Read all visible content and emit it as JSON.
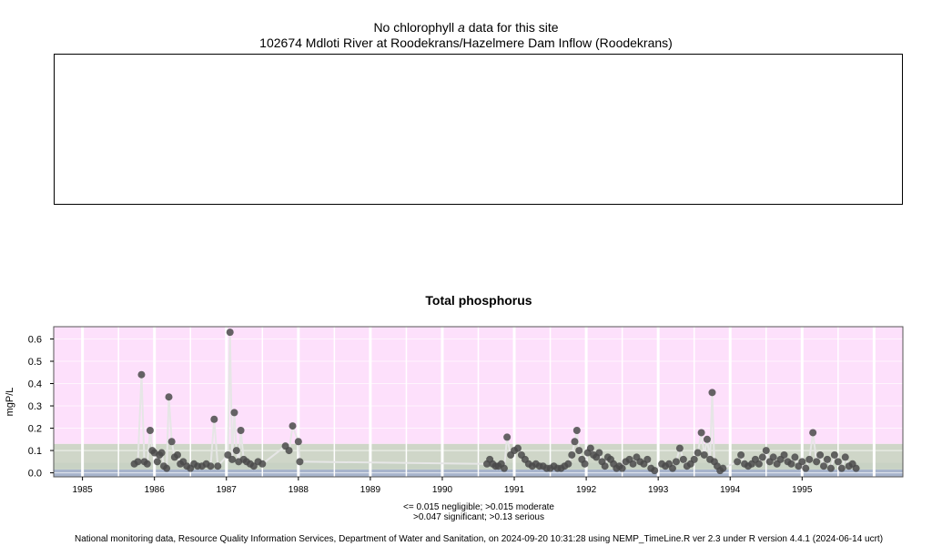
{
  "header": {
    "no_data_prefix": "No chlorophyll",
    "no_data_italic": "a",
    "no_data_suffix": "data for this site",
    "site": "102674 Mdloti River at Roodekrans/Hazelmere Dam Inflow (Roodekrans)"
  },
  "chart_data": {
    "type": "scatter",
    "title": "Total phosphorus",
    "ylabel": "mgP/L",
    "xlabel": "",
    "xlim": [
      1984.6,
      1996.4
    ],
    "ylim": [
      -0.018,
      0.655
    ],
    "x_ticks": [
      "1985",
      "1986",
      "1987",
      "1988",
      "1989",
      "1990",
      "1991",
      "1992",
      "1993",
      "1994",
      "1995"
    ],
    "y_ticks": [
      "0.0",
      "0.1",
      "0.2",
      "0.3",
      "0.4",
      "0.5",
      "0.6"
    ],
    "bands": [
      {
        "name": "negligible",
        "from": -0.018,
        "to": 0.015,
        "color": "#a7b4cc"
      },
      {
        "name": "moderate",
        "from": 0.015,
        "to": 0.047,
        "color": "#c8d2c4"
      },
      {
        "name": "significant",
        "from": 0.047,
        "to": 0.13,
        "color": "#cfd6c8"
      },
      {
        "name": "serious",
        "from": 0.13,
        "to": 0.655,
        "color": "#fde0fb"
      }
    ],
    "grid": "vertical+horizontal",
    "point_color": "#4a4a4a",
    "line_color": "#e6e6e6",
    "series": [
      {
        "values": [
          [
            1985.72,
            0.04
          ],
          [
            1985.77,
            0.05
          ],
          [
            1985.82,
            0.44
          ],
          [
            1985.86,
            0.05
          ],
          [
            1985.9,
            0.04
          ],
          [
            1985.94,
            0.19
          ],
          [
            1985.97,
            0.1
          ],
          [
            1986.0,
            0.09
          ],
          [
            1986.04,
            0.05
          ],
          [
            1986.07,
            0.08
          ],
          [
            1986.1,
            0.09
          ],
          [
            1986.13,
            0.03
          ],
          [
            1986.17,
            0.02
          ],
          [
            1986.2,
            0.34
          ],
          [
            1986.24,
            0.14
          ],
          [
            1986.28,
            0.07
          ],
          [
            1986.32,
            0.08
          ],
          [
            1986.36,
            0.04
          ],
          [
            1986.4,
            0.05
          ],
          [
            1986.45,
            0.03
          ],
          [
            1986.5,
            0.02
          ],
          [
            1986.55,
            0.04
          ],
          [
            1986.6,
            0.03
          ],
          [
            1986.66,
            0.03
          ],
          [
            1986.72,
            0.04
          ],
          [
            1986.78,
            0.03
          ],
          [
            1986.83,
            0.24
          ],
          [
            1986.88,
            0.03
          ],
          [
            1987.02,
            0.08
          ],
          [
            1987.05,
            0.63
          ],
          [
            1987.08,
            0.06
          ],
          [
            1987.11,
            0.27
          ],
          [
            1987.14,
            0.1
          ],
          [
            1987.17,
            0.05
          ],
          [
            1987.2,
            0.19
          ],
          [
            1987.24,
            0.06
          ],
          [
            1987.28,
            0.05
          ],
          [
            1987.33,
            0.04
          ],
          [
            1987.38,
            0.03
          ],
          [
            1987.44,
            0.05
          ],
          [
            1987.5,
            0.04
          ],
          [
            1987.82,
            0.12
          ],
          [
            1987.87,
            0.1
          ],
          [
            1987.92,
            0.21
          ],
          [
            1988.0,
            0.14
          ],
          [
            1988.02,
            0.05
          ],
          [
            1990.62,
            0.04
          ],
          [
            1990.66,
            0.06
          ],
          [
            1990.7,
            0.04
          ],
          [
            1990.74,
            0.03
          ],
          [
            1990.78,
            0.03
          ],
          [
            1990.82,
            0.04
          ],
          [
            1990.86,
            0.02
          ],
          [
            1990.9,
            0.16
          ],
          [
            1990.95,
            0.08
          ],
          [
            1991.0,
            0.1
          ],
          [
            1991.05,
            0.11
          ],
          [
            1991.1,
            0.08
          ],
          [
            1991.15,
            0.06
          ],
          [
            1991.2,
            0.04
          ],
          [
            1991.25,
            0.03
          ],
          [
            1991.3,
            0.04
          ],
          [
            1991.35,
            0.03
          ],
          [
            1991.4,
            0.03
          ],
          [
            1991.45,
            0.02
          ],
          [
            1991.5,
            0.02
          ],
          [
            1991.55,
            0.03
          ],
          [
            1991.6,
            0.02
          ],
          [
            1991.65,
            0.02
          ],
          [
            1991.7,
            0.03
          ],
          [
            1991.75,
            0.04
          ],
          [
            1991.8,
            0.08
          ],
          [
            1991.84,
            0.14
          ],
          [
            1991.87,
            0.19
          ],
          [
            1991.9,
            0.1
          ],
          [
            1991.94,
            0.06
          ],
          [
            1991.98,
            0.04
          ],
          [
            1992.02,
            0.09
          ],
          [
            1992.06,
            0.11
          ],
          [
            1992.1,
            0.08
          ],
          [
            1992.14,
            0.07
          ],
          [
            1992.18,
            0.09
          ],
          [
            1992.22,
            0.05
          ],
          [
            1992.26,
            0.03
          ],
          [
            1992.3,
            0.07
          ],
          [
            1992.34,
            0.06
          ],
          [
            1992.38,
            0.04
          ],
          [
            1992.42,
            0.02
          ],
          [
            1992.46,
            0.03
          ],
          [
            1992.5,
            0.02
          ],
          [
            1992.55,
            0.05
          ],
          [
            1992.6,
            0.06
          ],
          [
            1992.65,
            0.04
          ],
          [
            1992.7,
            0.07
          ],
          [
            1992.75,
            0.05
          ],
          [
            1992.8,
            0.04
          ],
          [
            1992.85,
            0.06
          ],
          [
            1992.9,
            0.02
          ],
          [
            1992.95,
            0.01
          ],
          [
            1993.05,
            0.04
          ],
          [
            1993.1,
            0.03
          ],
          [
            1993.15,
            0.04
          ],
          [
            1993.2,
            0.02
          ],
          [
            1993.25,
            0.05
          ],
          [
            1993.3,
            0.11
          ],
          [
            1993.35,
            0.06
          ],
          [
            1993.4,
            0.03
          ],
          [
            1993.45,
            0.04
          ],
          [
            1993.5,
            0.06
          ],
          [
            1993.55,
            0.09
          ],
          [
            1993.6,
            0.18
          ],
          [
            1993.64,
            0.08
          ],
          [
            1993.68,
            0.15
          ],
          [
            1993.72,
            0.06
          ],
          [
            1993.75,
            0.36
          ],
          [
            1993.78,
            0.05
          ],
          [
            1993.82,
            0.03
          ],
          [
            1993.86,
            0.01
          ],
          [
            1993.9,
            0.02
          ],
          [
            1994.1,
            0.05
          ],
          [
            1994.15,
            0.08
          ],
          [
            1994.2,
            0.04
          ],
          [
            1994.25,
            0.03
          ],
          [
            1994.3,
            0.04
          ],
          [
            1994.35,
            0.06
          ],
          [
            1994.4,
            0.04
          ],
          [
            1994.45,
            0.07
          ],
          [
            1994.5,
            0.1
          ],
          [
            1994.55,
            0.05
          ],
          [
            1994.6,
            0.07
          ],
          [
            1994.65,
            0.04
          ],
          [
            1994.7,
            0.06
          ],
          [
            1994.75,
            0.08
          ],
          [
            1994.8,
            0.05
          ],
          [
            1994.85,
            0.04
          ],
          [
            1994.9,
            0.07
          ],
          [
            1994.95,
            0.03
          ],
          [
            1995.0,
            0.05
          ],
          [
            1995.05,
            0.02
          ],
          [
            1995.1,
            0.06
          ],
          [
            1995.15,
            0.18
          ],
          [
            1995.2,
            0.05
          ],
          [
            1995.25,
            0.08
          ],
          [
            1995.3,
            0.03
          ],
          [
            1995.35,
            0.06
          ],
          [
            1995.4,
            0.02
          ],
          [
            1995.45,
            0.08
          ],
          [
            1995.5,
            0.05
          ],
          [
            1995.55,
            0.02
          ],
          [
            1995.6,
            0.07
          ],
          [
            1995.65,
            0.03
          ],
          [
            1995.7,
            0.04
          ],
          [
            1995.75,
            0.02
          ]
        ]
      }
    ]
  },
  "legend_text": {
    "line1": "<= 0.015 negligible; >0.015 moderate",
    "line2": ">0.047 significant; >0.13 serious"
  },
  "footer": "National monitoring data, Resource Quality Information Services, Department of Water and Sanitation, on 2024-09-20 10:31:28 using NEMP_TimeLine.R ver 2.3 under R version 4.4.1 (2024-06-14 ucrt)"
}
